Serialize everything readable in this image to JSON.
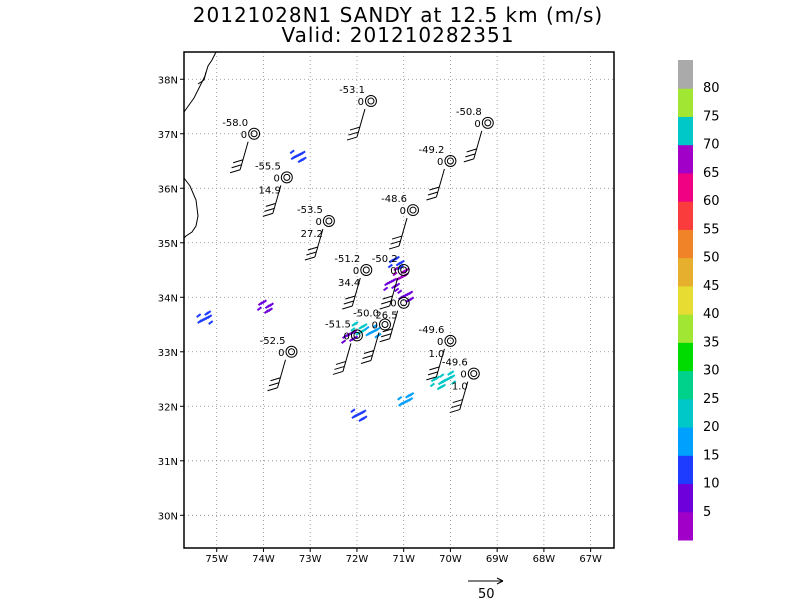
{
  "chart_data": {
    "type": "scatter",
    "title": "20121028N1 SANDY at 12.5 km (m/s)",
    "subtitle": "Valid: 201210282351",
    "xlim": [
      -75.7,
      -66.5
    ],
    "ylim": [
      29.4,
      38.5
    ],
    "xticks": [
      {
        "v": -75,
        "label": "75W"
      },
      {
        "v": -74,
        "label": "74W"
      },
      {
        "v": -73,
        "label": "73W"
      },
      {
        "v": -72,
        "label": "72W"
      },
      {
        "v": -71,
        "label": "71W"
      },
      {
        "v": -70,
        "label": "70W"
      },
      {
        "v": -69,
        "label": "69W"
      },
      {
        "v": -68,
        "label": "68W"
      },
      {
        "v": -67,
        "label": "67W"
      }
    ],
    "yticks": [
      {
        "v": 30,
        "label": "30N"
      },
      {
        "v": 31,
        "label": "31N"
      },
      {
        "v": 32,
        "label": "32N"
      },
      {
        "v": 33,
        "label": "33N"
      },
      {
        "v": 34,
        "label": "34N"
      },
      {
        "v": 35,
        "label": "35N"
      },
      {
        "v": 36,
        "label": "36N"
      },
      {
        "v": 37,
        "label": "37N"
      },
      {
        "v": 38,
        "label": "38N"
      }
    ],
    "grid": true,
    "stations": [
      {
        "lon": -71.7,
        "lat": 37.6,
        "temp": "-53.1",
        "ct": "0",
        "extra": ""
      },
      {
        "lon": -69.2,
        "lat": 37.2,
        "temp": "-50.8",
        "ct": "0",
        "extra": ""
      },
      {
        "lon": -74.2,
        "lat": 37.0,
        "temp": "-58.0",
        "ct": "0",
        "extra": ""
      },
      {
        "lon": -70.0,
        "lat": 36.5,
        "temp": "-49.2",
        "ct": "0",
        "extra": ""
      },
      {
        "lon": -73.5,
        "lat": 36.2,
        "temp": "-55.5",
        "ct": "0",
        "extra": "14.9"
      },
      {
        "lon": -70.8,
        "lat": 35.6,
        "temp": "-48.6",
        "ct": "0",
        "extra": ""
      },
      {
        "lon": -72.6,
        "lat": 35.4,
        "temp": "-53.5",
        "ct": "0",
        "extra": "27.2"
      },
      {
        "lon": -71.8,
        "lat": 34.5,
        "temp": "-51.2",
        "ct": "0",
        "extra": "34.4"
      },
      {
        "lon": -71.0,
        "lat": 34.5,
        "temp": "-50.2",
        "ct": "0",
        "extra": ""
      },
      {
        "lon": -71.0,
        "lat": 33.9,
        "temp": "",
        "ct": "0",
        "extra": "26.5"
      },
      {
        "lon": -71.4,
        "lat": 33.5,
        "temp": "-50.0",
        "ct": "0",
        "extra": ""
      },
      {
        "lon": -72.0,
        "lat": 33.3,
        "temp": "-51.5",
        "ct": "0",
        "extra": ""
      },
      {
        "lon": -73.4,
        "lat": 33.0,
        "temp": "-52.5",
        "ct": "0",
        "extra": ""
      },
      {
        "lon": -70.0,
        "lat": 33.2,
        "temp": "-49.6",
        "ct": "0",
        "extra": "1.0"
      },
      {
        "lon": -69.5,
        "lat": 32.6,
        "temp": "-49.6",
        "ct": "0",
        "extra": "1.0"
      }
    ],
    "observations": [
      {
        "lon": -73.3,
        "lat": 36.55,
        "speed": 10
      },
      {
        "lon": -74.0,
        "lat": 33.8,
        "speed": 5
      },
      {
        "lon": -75.3,
        "lat": 33.6,
        "speed": 12
      },
      {
        "lon": -72.2,
        "lat": 33.25,
        "speed": 6
      },
      {
        "lon": -72.0,
        "lat": 33.4,
        "speed": 22
      },
      {
        "lon": -71.7,
        "lat": 33.35,
        "speed": 18
      },
      {
        "lon": -71.3,
        "lat": 34.2,
        "speed": 5
      },
      {
        "lon": -71.1,
        "lat": 34.4,
        "speed": 4
      },
      {
        "lon": -71.0,
        "lat": 34.0,
        "speed": 8
      },
      {
        "lon": -71.2,
        "lat": 34.6,
        "speed": 14
      },
      {
        "lon": -71.0,
        "lat": 32.1,
        "speed": 18
      },
      {
        "lon": -72.0,
        "lat": 31.8,
        "speed": 14
      },
      {
        "lon": -70.3,
        "lat": 32.4,
        "speed": 22
      },
      {
        "lon": -70.1,
        "lat": 32.5,
        "speed": 20
      }
    ],
    "colorbar": {
      "labels": [
        "5",
        "10",
        "15",
        "20",
        "25",
        "30",
        "35",
        "40",
        "45",
        "50",
        "55",
        "60",
        "65",
        "70",
        "75",
        "80"
      ],
      "colors": [
        "#a000c8",
        "#6e00dc",
        "#1e3cff",
        "#00a0ff",
        "#00c8c8",
        "#00d28c",
        "#00dc00",
        "#a0e632",
        "#e6dc32",
        "#e6af2d",
        "#f08228",
        "#fa3c3c",
        "#f00082",
        "#a000c8",
        "#00c8c8",
        "#a0e632",
        "#aaaaaa"
      ]
    },
    "scale_vector": {
      "value": "50"
    }
  }
}
